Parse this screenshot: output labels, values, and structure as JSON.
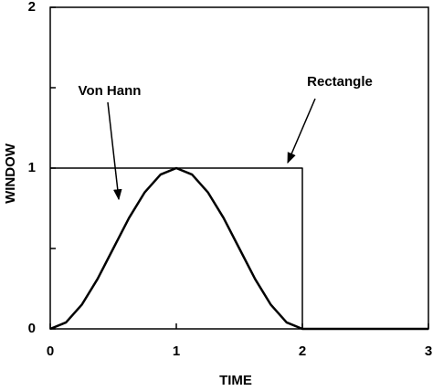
{
  "chart_data": {
    "type": "line",
    "xlabel": "TIME",
    "ylabel": "WINDOW",
    "xlim": [
      0,
      3
    ],
    "xticks": [
      0,
      1,
      2,
      3
    ],
    "ylim": [
      0,
      2
    ],
    "yticks": [
      0,
      1,
      2
    ],
    "yminor": [
      0.5,
      1.5
    ],
    "series": [
      {
        "name": "Rectangle",
        "color": "#000000",
        "width": 1.5,
        "x": [
          0,
          2,
          2
        ],
        "values": [
          1,
          1,
          0
        ]
      },
      {
        "name": "Von Hann",
        "color": "#000000",
        "width": 2.5,
        "x": [
          0,
          0.125,
          0.25,
          0.375,
          0.5,
          0.625,
          0.75,
          0.875,
          1,
          1.125,
          1.25,
          1.375,
          1.5,
          1.625,
          1.75,
          1.875,
          2,
          2.125,
          2.25,
          2.5,
          2.75,
          3
        ],
        "values": [
          0,
          0.04,
          0.15,
          0.31,
          0.5,
          0.69,
          0.85,
          0.96,
          1,
          0.96,
          0.85,
          0.69,
          0.5,
          0.31,
          0.15,
          0.04,
          0,
          0,
          0,
          0,
          0,
          0
        ]
      }
    ]
  }
}
